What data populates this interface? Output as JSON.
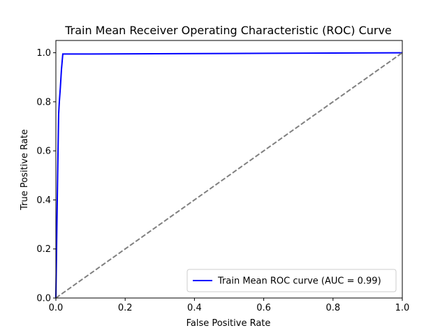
{
  "chart_data": {
    "type": "line",
    "title": "Train Mean Receiver Operating Characteristic (ROC) Curve",
    "xlabel": "False Positive Rate",
    "ylabel": "True Positive Rate",
    "xlim": [
      0.0,
      1.0
    ],
    "ylim": [
      0.0,
      1.05
    ],
    "xticks": [
      0.0,
      0.2,
      0.4,
      0.6,
      0.8,
      1.0
    ],
    "yticks": [
      0.0,
      0.2,
      0.4,
      0.6,
      0.8,
      1.0
    ],
    "xtick_labels": [
      "0.0",
      "0.2",
      "0.4",
      "0.6",
      "0.8",
      "1.0"
    ],
    "ytick_labels": [
      "0.0",
      "0.2",
      "0.4",
      "0.6",
      "0.8",
      "1.0"
    ],
    "grid": false,
    "legend_position": "lower-right",
    "series": [
      {
        "name": "Train Mean ROC curve (AUC = 0.99)",
        "color": "#0000ff",
        "style": "solid",
        "x": [
          0.0,
          0.002,
          0.004,
          0.006,
          0.008,
          0.01,
          0.013,
          0.016,
          0.02,
          0.1,
          0.5,
          1.0
        ],
        "y": [
          0.0,
          0.2,
          0.4,
          0.58,
          0.75,
          0.8,
          0.86,
          0.93,
          0.995,
          0.995,
          0.997,
          1.0
        ]
      },
      {
        "color": "#808080",
        "style": "dashed",
        "x": [
          0.0,
          1.0
        ],
        "y": [
          0.0,
          1.0
        ]
      }
    ]
  }
}
